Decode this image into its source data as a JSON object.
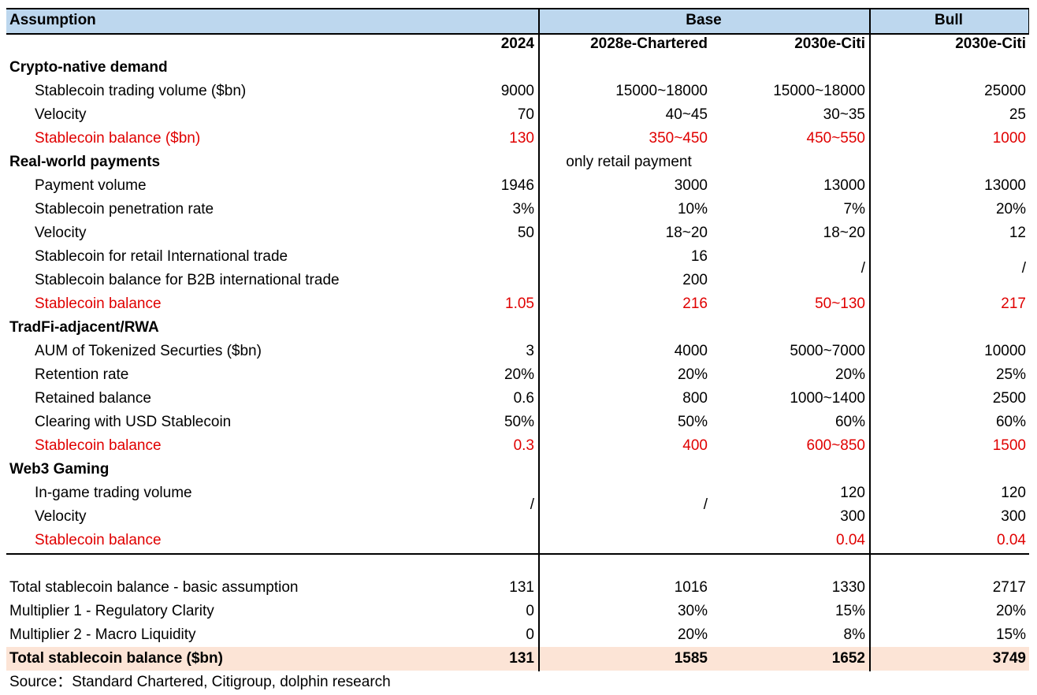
{
  "header": {
    "assumption": "Assumption",
    "base": "Base",
    "bull": "Bull"
  },
  "columns": [
    "2024",
    "2028e-Chartered",
    "2030e-Citi",
    "2030e-Citi"
  ],
  "sections": [
    {
      "title": "Crypto-native demand",
      "rows": [
        {
          "label": "Stablecoin trading volume  ($bn)",
          "cells": [
            9000,
            "15000~18000",
            "15000~18000",
            25000
          ]
        },
        {
          "label": "Velocity",
          "cells": [
            70,
            "40~45",
            "30~35",
            25
          ]
        },
        {
          "label": "Stablecoin balance  ($bn)",
          "emphasis": true,
          "cells": [
            130,
            "350~450",
            "450~550",
            1000
          ]
        }
      ]
    },
    {
      "title": "Real-world payments",
      "cells": [
        null,
        "only retail payment",
        null,
        null
      ],
      "rows": [
        {
          "label": "Payment volume",
          "cells": [
            1946,
            3000,
            13000,
            13000
          ]
        },
        {
          "label": "Stablecoin penetration rate",
          "cells": [
            "3%",
            "10%",
            "7%",
            "20%"
          ]
        },
        {
          "label": "Velocity",
          "cells": [
            50,
            "18~20",
            "18~20",
            12
          ]
        },
        {
          "label": "Stablecoin for retail International trade",
          "cells": [
            null,
            16,
            "/",
            "/"
          ]
        },
        {
          "label": "Stablecoin balance for B2B international trade",
          "cells": [
            null,
            200,
            null,
            null
          ]
        },
        {
          "label": "Stablecoin balance",
          "emphasis": true,
          "cells": [
            1.05,
            216,
            "50~130",
            217
          ]
        }
      ]
    },
    {
      "title": "TradFi-adjacent/RWA",
      "rows": [
        {
          "label": "AUM of Tokenized Securties   ($bn)",
          "cells": [
            3,
            4000,
            "5000~7000",
            10000
          ]
        },
        {
          "label": "Retention rate",
          "cells": [
            "20%",
            "20%",
            "20%",
            "25%"
          ]
        },
        {
          "label": "Retained balance",
          "cells": [
            0.6,
            800,
            "1000~1400",
            2500
          ]
        },
        {
          "label": "Clearing with USD Stablecoin",
          "cells": [
            "50%",
            "50%",
            "60%",
            "60%"
          ]
        },
        {
          "label": "Stablecoin balance",
          "emphasis": true,
          "cells": [
            0.3,
            400,
            "600~850",
            1500
          ]
        }
      ]
    },
    {
      "title": "Web3 Gaming",
      "rows": [
        {
          "label": "In-game trading volume",
          "cells": [
            "/",
            "/",
            120,
            120
          ]
        },
        {
          "label": "Velocity",
          "cells": [
            null,
            null,
            300,
            300
          ]
        },
        {
          "label": "Stablecoin balance",
          "emphasis": true,
          "cells": [
            null,
            null,
            0.04,
            0.04
          ]
        }
      ]
    }
  ],
  "summary": [
    {
      "label": "Total stablecoin balance - basic assumption",
      "cells": [
        131,
        1016,
        1330,
        2717
      ]
    },
    {
      "label": "Multiplier 1 - Regulatory Clarity",
      "cells": [
        0,
        "30%",
        "15%",
        "20%"
      ]
    },
    {
      "label": "Multiplier 2 - Macro Liquidity",
      "cells": [
        0,
        "20%",
        "8%",
        "15%"
      ]
    },
    {
      "label": "Total stablecoin balance  ($bn)",
      "total": true,
      "cells": [
        131,
        1585,
        1652,
        3749
      ]
    }
  ],
  "source": "Source：Standard Chartered, Citigroup, dolphin research"
}
